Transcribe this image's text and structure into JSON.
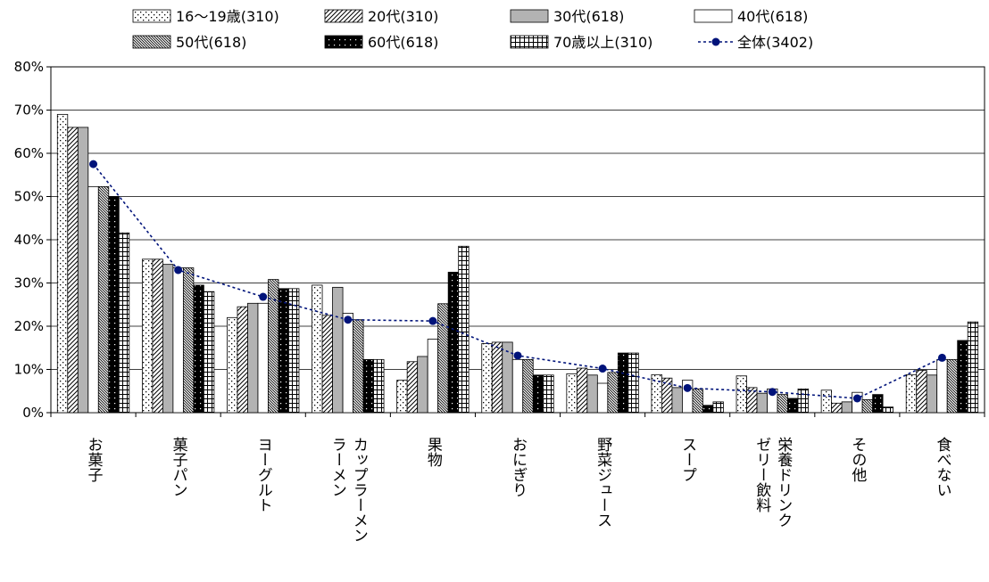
{
  "chart_data": {
    "type": "bar",
    "title": "",
    "xlabel": "",
    "ylabel": "",
    "ylim": [
      0,
      80
    ],
    "yticks": [
      "0%",
      "10%",
      "20%",
      "30%",
      "40%",
      "50%",
      "60%",
      "70%",
      "80%"
    ],
    "grid": true,
    "legend_position": "top",
    "categories": [
      [
        "お菓子"
      ],
      [
        "菓子パン"
      ],
      [
        "ヨーグルト"
      ],
      [
        "カップラーメン",
        "ラーメン"
      ],
      [
        "果物"
      ],
      [
        "おにぎり"
      ],
      [
        "野菜ジュース"
      ],
      [
        "スープ"
      ],
      [
        "栄養ドリンク",
        "ゼリー飲料"
      ],
      [
        "その他"
      ],
      [
        "食べない"
      ]
    ],
    "series": [
      {
        "name": "16～19歳(310)",
        "pattern": "dots",
        "values": [
          69,
          35.5,
          22,
          29.5,
          7.5,
          16,
          9,
          8.8,
          8.5,
          5.2,
          8.8
        ]
      },
      {
        "name": "20代(310)",
        "pattern": "diag",
        "values": [
          66,
          35.5,
          24.5,
          22.5,
          11.8,
          16.3,
          10.3,
          8,
          5.8,
          2.2,
          9.8
        ]
      },
      {
        "name": "30代(618)",
        "pattern": "gray",
        "values": [
          66,
          34.3,
          25.3,
          29,
          13,
          16.3,
          8.7,
          5.8,
          4.5,
          2.5,
          8.7
        ]
      },
      {
        "name": "40代(618)",
        "pattern": "white",
        "values": [
          52.3,
          33.5,
          25.3,
          23,
          17,
          12.3,
          6.8,
          7.5,
          5.5,
          4.7,
          12.3
        ]
      },
      {
        "name": "50代(618)",
        "pattern": "dense-diag",
        "values": [
          52.3,
          33.5,
          30.8,
          21.5,
          25.2,
          12.3,
          9.3,
          5.5,
          4.2,
          3,
          12.3
        ]
      },
      {
        "name": "60代(618)",
        "pattern": "black",
        "values": [
          50,
          29.5,
          28.7,
          12.3,
          32.5,
          8.7,
          13.8,
          1.7,
          3.3,
          4.2,
          16.7
        ]
      },
      {
        "name": "70歳以上(310)",
        "pattern": "grid",
        "values": [
          41.6,
          28,
          28.7,
          12.3,
          38.5,
          8.7,
          13.8,
          2.5,
          5.5,
          1.3,
          21
        ]
      },
      {
        "name": "全体(3402)",
        "type": "line",
        "color": "#00137a",
        "values": [
          57.5,
          33,
          26.8,
          21.5,
          21.2,
          13.2,
          10.2,
          5.7,
          4.8,
          3.3,
          12.7
        ]
      }
    ]
  }
}
